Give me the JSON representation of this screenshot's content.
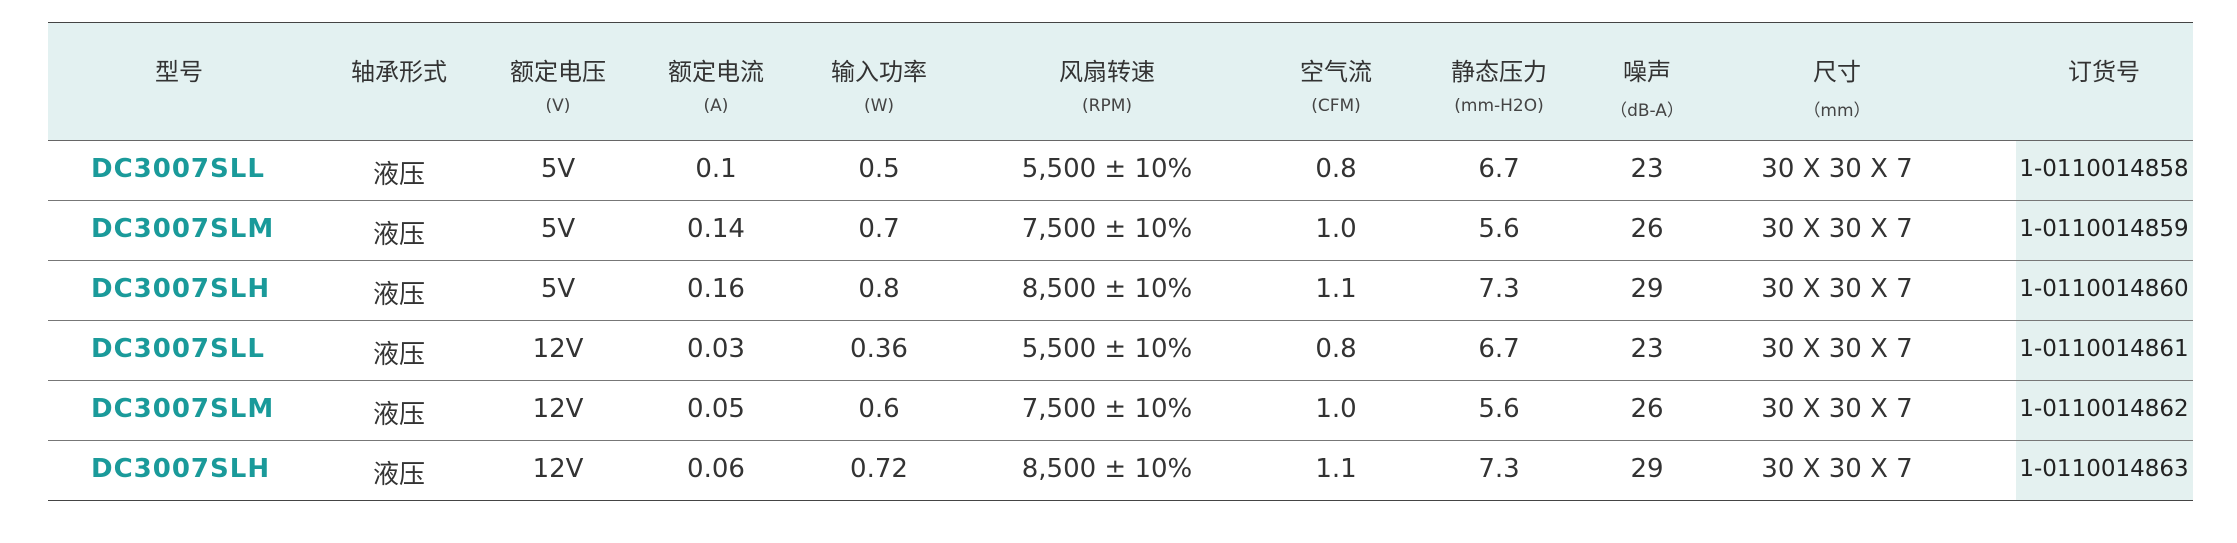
{
  "table": {
    "header": [
      {
        "title": "型号"
      },
      {
        "title": "轴承形式"
      },
      {
        "title": "额定电压",
        "unit": "(V)"
      },
      {
        "title": "额定电流",
        "unit": "(A)"
      },
      {
        "title": "输入功率",
        "unit": "(W)"
      },
      {
        "title": "风扇转速",
        "unit": "(RPM)"
      },
      {
        "title": "空气流",
        "unit": "(CFM)"
      },
      {
        "title": "静态压力",
        "unit": "(mm-H2O)"
      },
      {
        "title": "噪声",
        "unit": "（dB-A）"
      },
      {
        "title": "尺寸",
        "unit": "（mm）"
      },
      {
        "title": "订货号"
      }
    ],
    "rows": [
      [
        "DC3007SLL",
        "液压",
        "5V",
        "0.1",
        "0.5",
        "5,500 ± 10%",
        "0.8",
        "6.7",
        "23",
        "30 X 30 X 7",
        "1-0110014858"
      ],
      [
        "DC3007SLM",
        "液压",
        "5V",
        "0.14",
        "0.7",
        "7,500 ± 10%",
        "1.0",
        "5.6",
        "26",
        "30 X 30 X 7",
        "1-0110014859"
      ],
      [
        "DC3007SLH",
        "液压",
        "5V",
        "0.16",
        "0.8",
        "8,500 ± 10%",
        "1.1",
        "7.3",
        "29",
        "30 X 30 X 7",
        "1-0110014860"
      ],
      [
        "DC3007SLL",
        "液压",
        "12V",
        "0.03",
        "0.36",
        "5,500 ± 10%",
        "0.8",
        "6.7",
        "23",
        "30 X 30 X 7",
        "1-0110014861"
      ],
      [
        "DC3007SLM",
        "液压",
        "12V",
        "0.05",
        "0.6",
        "7,500 ± 10%",
        "1.0",
        "5.6",
        "26",
        "30 X 30 X 7",
        "1-0110014862"
      ],
      [
        "DC3007SLH",
        "液压",
        "12V",
        "0.06",
        "0.72",
        "8,500 ± 10%",
        "1.1",
        "7.3",
        "29",
        "30 X 30 X 7",
        "1-0110014863"
      ]
    ]
  }
}
